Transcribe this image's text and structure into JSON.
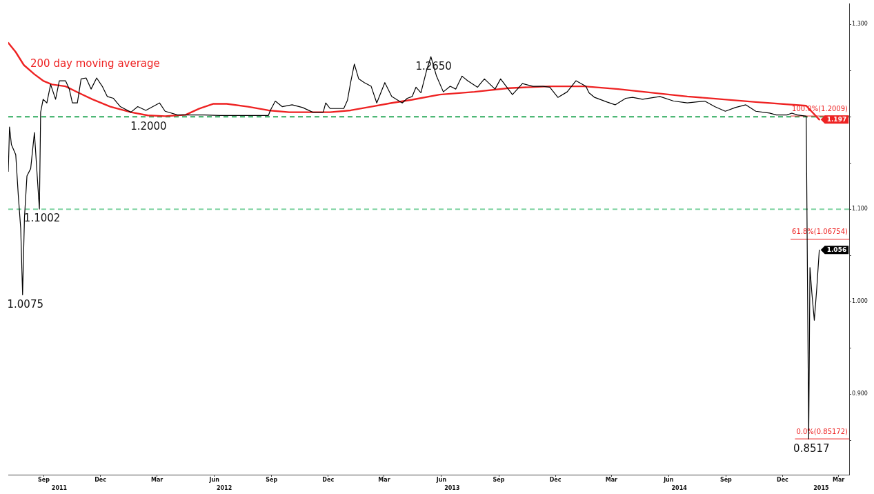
{
  "chart_data": {
    "type": "line",
    "xlim": [
      "2011-07-20",
      "2015-04-01"
    ],
    "xticks": [
      {
        "value": "2011-09-15",
        "label": "Sep"
      },
      {
        "value": "2011-12-15",
        "label": "Dec"
      },
      {
        "value": "2012-03-15",
        "label": "Mar"
      },
      {
        "value": "2012-06-15",
        "label": "Jun"
      },
      {
        "value": "2012-09-15",
        "label": "Sep"
      },
      {
        "value": "2012-12-15",
        "label": "Dec"
      },
      {
        "value": "2013-03-15",
        "label": "Mar"
      },
      {
        "value": "2013-06-15",
        "label": "Jun"
      },
      {
        "value": "2013-09-15",
        "label": "Sep"
      },
      {
        "value": "2013-12-15",
        "label": "Dec"
      },
      {
        "value": "2014-03-15",
        "label": "Mar"
      },
      {
        "value": "2014-06-15",
        "label": "Jun"
      },
      {
        "value": "2014-09-15",
        "label": "Sep"
      },
      {
        "value": "2014-12-15",
        "label": "Dec"
      },
      {
        "value": "2015-03-15",
        "label": "Mar"
      }
    ],
    "x2lim": [
      "2011-07-20",
      "2015-04-01"
    ],
    "x2ticks": [
      {
        "value": "2011-10-10",
        "label": "2011"
      },
      {
        "value": "2012-07-01",
        "label": "2012"
      },
      {
        "value": "2013-07-02",
        "label": "2013"
      },
      {
        "value": "2014-07-02",
        "label": "2014"
      },
      {
        "value": "2015-02-15",
        "label": "2015"
      }
    ],
    "ylim": [
      0.813,
      1.322
    ],
    "yticks": [
      {
        "value": 0.85,
        "label": null
      },
      {
        "value": 0.9,
        "label": "0.900"
      },
      {
        "value": 0.95,
        "label": null
      },
      {
        "value": 1.0,
        "label": "1.000"
      },
      {
        "value": 1.05,
        "label": null
      },
      {
        "value": 1.1,
        "label": "1.100"
      },
      {
        "value": 1.15,
        "label": null
      },
      {
        "value": 1.2,
        "label": null
      },
      {
        "value": 1.25,
        "label": null
      },
      {
        "value": 1.3,
        "label": "1.300"
      }
    ],
    "marker": "none",
    "legend": false,
    "grid": false,
    "series": [
      {
        "color": "#000000",
        "x": [
          "2011-07-20",
          "2011-07-22",
          "2011-07-25",
          "2011-08-01",
          "2011-08-05",
          "2011-08-09",
          "2011-08-12",
          "2011-08-15",
          "2011-08-19",
          "2011-08-25",
          "2011-08-31",
          "2011-09-04",
          "2011-09-08",
          "2011-09-10",
          "2011-09-14",
          "2011-09-20",
          "2011-09-26",
          "2011-10-04",
          "2011-10-10",
          "2011-10-20",
          "2011-10-26",
          "2011-10-31",
          "2011-11-08",
          "2011-11-14",
          "2011-11-22",
          "2011-11-30",
          "2011-12-09",
          "2011-12-18",
          "2011-12-26",
          "2012-01-05",
          "2012-01-16",
          "2012-02-02",
          "2012-02-13",
          "2012-02-26",
          "2012-03-19",
          "2012-03-28",
          "2012-04-17",
          "2012-05-30",
          "2012-06-24",
          "2012-08-08",
          "2012-09-10",
          "2012-09-13",
          "2012-09-21",
          "2012-10-02",
          "2012-10-18",
          "2012-11-04",
          "2012-11-20",
          "2012-12-07",
          "2012-12-11",
          "2012-12-18",
          "2013-01-09",
          "2013-01-15",
          "2013-01-20",
          "2013-01-26",
          "2013-02-02",
          "2013-02-11",
          "2013-02-22",
          "2013-03-03",
          "2013-03-16",
          "2013-03-27",
          "2013-04-13",
          "2013-04-21",
          "2013-04-29",
          "2013-05-05",
          "2013-05-13",
          "2013-05-22",
          "2013-05-29",
          "2013-06-07",
          "2013-06-18",
          "2013-06-29",
          "2013-07-08",
          "2013-07-18",
          "2013-07-27",
          "2013-08-12",
          "2013-08-18",
          "2013-08-23",
          "2013-09-09",
          "2013-09-18",
          "2013-10-07",
          "2013-10-23",
          "2013-11-09",
          "2013-11-25",
          "2013-12-06",
          "2013-12-19",
          "2014-01-03",
          "2014-01-17",
          "2014-02-02",
          "2014-02-07",
          "2014-02-16",
          "2014-03-08",
          "2014-03-21",
          "2014-04-07",
          "2014-04-18",
          "2014-05-04",
          "2014-06-01",
          "2014-06-23",
          "2014-07-15",
          "2014-08-12",
          "2014-08-28",
          "2014-09-14",
          "2014-09-30",
          "2014-10-17",
          "2014-11-02",
          "2014-11-24",
          "2014-12-05",
          "2014-12-22",
          "2014-12-30",
          "2015-01-08",
          "2015-01-22",
          "2015-01-26",
          "2015-01-28",
          "2015-01-31",
          "2015-02-04",
          "2015-02-08",
          "2015-02-12"
        ],
        "values": [
          1.141,
          1.189,
          1.17,
          1.159,
          1.116,
          1.079,
          1.0075,
          1.091,
          1.136,
          1.144,
          1.183,
          1.141,
          1.1002,
          1.205,
          1.219,
          1.215,
          1.235,
          1.219,
          1.239,
          1.239,
          1.23,
          1.215,
          1.215,
          1.241,
          1.242,
          1.23,
          1.242,
          1.233,
          1.222,
          1.22,
          1.211,
          1.205,
          1.211,
          1.207,
          1.215,
          1.206,
          1.202,
          1.202,
          1.2015,
          1.2015,
          1.2015,
          1.207,
          1.217,
          1.211,
          1.213,
          1.21,
          1.205,
          1.205,
          1.215,
          1.209,
          1.209,
          1.218,
          1.237,
          1.257,
          1.241,
          1.237,
          1.233,
          1.215,
          1.237,
          1.222,
          1.215,
          1.22,
          1.222,
          1.232,
          1.226,
          1.25,
          1.265,
          1.244,
          1.227,
          1.233,
          1.23,
          1.244,
          1.239,
          1.232,
          1.237,
          1.241,
          1.23,
          1.241,
          1.224,
          1.236,
          1.233,
          1.233,
          1.232,
          1.221,
          1.227,
          1.239,
          1.233,
          1.226,
          1.221,
          1.216,
          1.213,
          1.22,
          1.221,
          1.219,
          1.222,
          1.217,
          1.215,
          1.217,
          1.211,
          1.206,
          1.21,
          1.213,
          1.206,
          1.204,
          1.202,
          1.202,
          1.204,
          1.202,
          1.2007,
          0.8517,
          1.037,
          1.01,
          0.98,
          1.015,
          1.056
        ],
        "value_labels": [
          null,
          null,
          null,
          null,
          null,
          null,
          null,
          null,
          null,
          null,
          null,
          null,
          null,
          null,
          null,
          null,
          null,
          null,
          null,
          null,
          null,
          null,
          null,
          null,
          null,
          null,
          null,
          null,
          null,
          null,
          null,
          null,
          null,
          null,
          null,
          null,
          null,
          null,
          null,
          null,
          null,
          null,
          null,
          null,
          null,
          null,
          null,
          null,
          null,
          null,
          null,
          null,
          null,
          null,
          null,
          null,
          null,
          null,
          null,
          null,
          null,
          null,
          null,
          null,
          null,
          null,
          null,
          null,
          null,
          null,
          null,
          null,
          null,
          null,
          null,
          null,
          null,
          null,
          null,
          null,
          null,
          null,
          null,
          null,
          null,
          null,
          null,
          null,
          null,
          null,
          null,
          null,
          null,
          null,
          null,
          null,
          null,
          null,
          null,
          null,
          null,
          null,
          null,
          null,
          null,
          null,
          null,
          null,
          null,
          null,
          null,
          null,
          null,
          null,
          "1.056"
        ]
      },
      {
        "name": "200 day moving average",
        "color": "#ee2222",
        "x": [
          "2011-07-20",
          "2011-08-01",
          "2011-08-14",
          "2011-08-31",
          "2011-09-14",
          "2011-09-28",
          "2011-10-20",
          "2011-11-10",
          "2011-12-02",
          "2011-12-31",
          "2012-02-02",
          "2012-02-29",
          "2012-03-28",
          "2012-04-30",
          "2012-05-22",
          "2012-06-13",
          "2012-07-05",
          "2012-08-08",
          "2012-09-10",
          "2012-10-13",
          "2012-11-26",
          "2012-12-18",
          "2013-01-20",
          "2013-02-22",
          "2013-03-27",
          "2013-04-29",
          "2013-06-12",
          "2013-08-07",
          "2013-10-01",
          "2013-12-06",
          "2014-01-30",
          "2014-03-26",
          "2014-07-15",
          "2014-11-02",
          "2015-01-22",
          "2015-02-12"
        ],
        "values": [
          1.28,
          1.27,
          1.256,
          1.246,
          1.239,
          1.235,
          1.233,
          1.226,
          1.219,
          1.211,
          1.205,
          1.2015,
          1.2007,
          1.2022,
          1.2089,
          1.214,
          1.214,
          1.211,
          1.207,
          1.205,
          1.205,
          1.205,
          1.207,
          1.211,
          1.215,
          1.2185,
          1.224,
          1.227,
          1.231,
          1.233,
          1.233,
          1.23,
          1.222,
          1.216,
          1.212,
          1.197
        ],
        "value_labels": [
          null,
          null,
          null,
          null,
          null,
          null,
          null,
          null,
          null,
          null,
          null,
          null,
          null,
          null,
          null,
          null,
          null,
          null,
          null,
          null,
          null,
          null,
          null,
          null,
          null,
          null,
          null,
          null,
          null,
          null,
          null,
          null,
          null,
          null,
          null,
          "1.197"
        ]
      }
    ],
    "ref_lines": [
      {
        "axis": "y",
        "value": 1.2,
        "color": "#2eaa5e",
        "line_style": "dashed"
      },
      {
        "axis": "y",
        "value": 1.1,
        "color": "#7fd3a2",
        "line_style": "dashed"
      },
      {
        "axis": "y",
        "value": 1.2009,
        "label": "100.0%(1.2009)",
        "color": "#ee2222"
      },
      {
        "axis": "y",
        "value": 1.06754,
        "label": "61.8%(1.06754)",
        "color": "#ee2222"
      },
      {
        "axis": "y",
        "value": 0.85172,
        "label": "0.0%(0.85172)",
        "color": "#ee2222"
      }
    ],
    "annotations": [
      {
        "text": "1.2650",
        "x": "2013-05-29",
        "y": 1.265
      },
      {
        "text": "1.2000",
        "x": "2012-02-26",
        "y": 1.2
      },
      {
        "text": "1.1002",
        "x": "2011-09-08",
        "y": 1.1002
      },
      {
        "text": "1.0075",
        "x": "2011-08-12",
        "y": 1.0075
      },
      {
        "text": "0.8517",
        "x": "2015-01-26",
        "y": 0.8517
      }
    ]
  }
}
